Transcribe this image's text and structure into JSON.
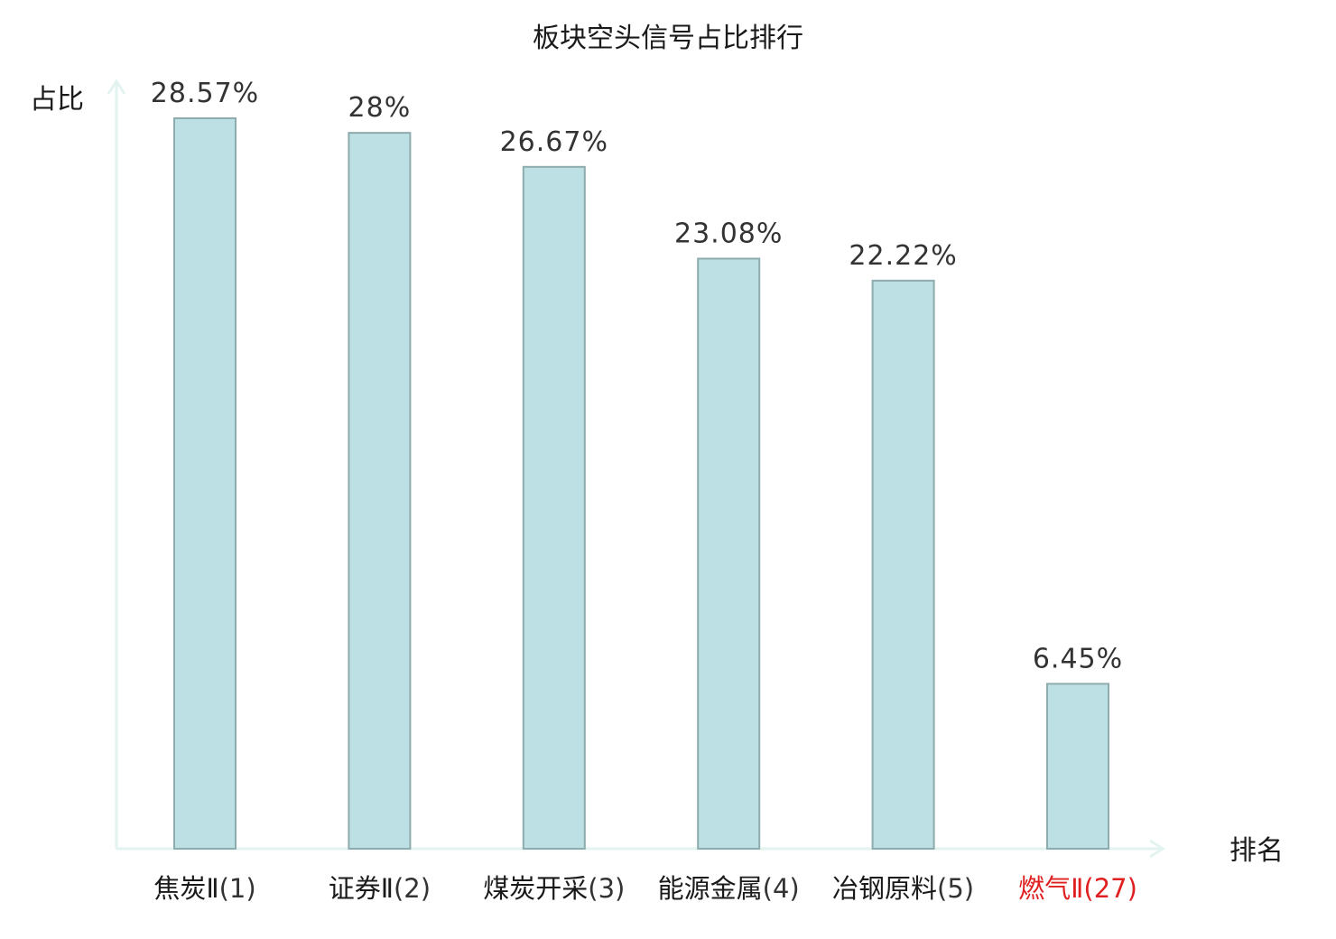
{
  "title": "板块空头信号占比排行",
  "chart_data": {
    "type": "bar",
    "title": "板块空头信号占比排行",
    "xlabel": "排名",
    "ylabel": "占比",
    "categories": [
      {
        "name": "焦炭Ⅱ",
        "rank": "(1)",
        "highlight": false
      },
      {
        "name": "证券Ⅱ",
        "rank": "(2)",
        "highlight": false
      },
      {
        "name": "煤炭开采",
        "rank": "(3)",
        "highlight": false
      },
      {
        "name": "能源金属",
        "rank": "(4)",
        "highlight": false
      },
      {
        "name": "冶钢原料",
        "rank": "(5)",
        "highlight": false
      },
      {
        "name": "燃气Ⅱ",
        "rank": "(27)",
        "highlight": true
      }
    ],
    "values": [
      28.57,
      28,
      26.67,
      23.08,
      22.22,
      6.45
    ],
    "value_labels": [
      "28.57%",
      "28%",
      "26.67%",
      "23.08%",
      "22.22%",
      "6.45%"
    ],
    "ylim": [
      0,
      29
    ],
    "grid": false,
    "colors": {
      "bar_fill": "#bce0e3",
      "bar_stroke": "#8eabad",
      "axis": "#e2f3f0",
      "label": "#1a1a1a",
      "rank": "#333333",
      "highlight": "#e02020"
    }
  }
}
